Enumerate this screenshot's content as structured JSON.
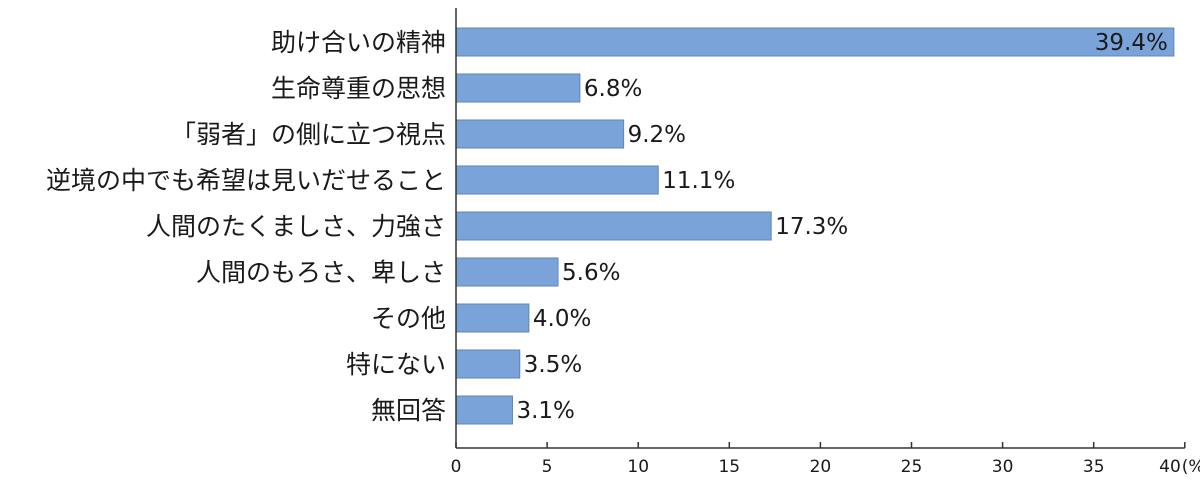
{
  "chart_data": {
    "type": "bar",
    "orientation": "horizontal",
    "categories": [
      "助け合いの精神",
      "生命尊重の思想",
      "「弱者」の側に立つ視点",
      "逆境の中でも希望は見いだせること",
      "人間のたくましさ、力強さ",
      "人間のもろさ、卑しさ",
      "その他",
      "特にない",
      "無回答"
    ],
    "values": [
      39.4,
      6.8,
      9.2,
      11.1,
      17.3,
      5.6,
      4.0,
      3.5,
      3.1
    ],
    "value_labels": [
      "39.4%",
      "6.8%",
      "9.2%",
      "11.1%",
      "17.3%",
      "5.6%",
      "4.0%",
      "3.5%",
      "3.1%"
    ],
    "xticks": [
      "0",
      "5",
      "10",
      "15",
      "20",
      "25",
      "30",
      "35",
      "40"
    ],
    "xunit": "(%)",
    "xlim": [
      0,
      40
    ],
    "bar_color": "#7aa4d9",
    "grid": false
  }
}
